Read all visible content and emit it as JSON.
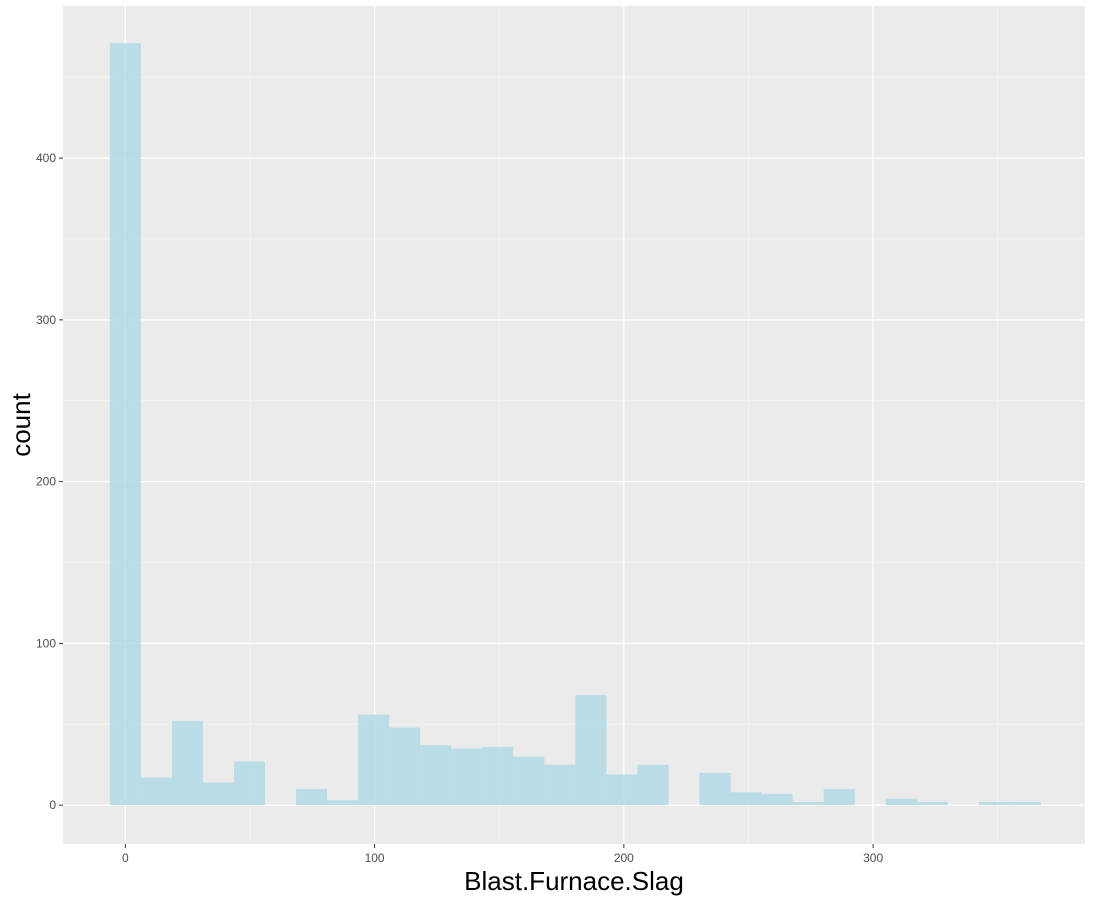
{
  "chart_data": {
    "type": "bar",
    "subtype": "histogram",
    "title": "",
    "xlabel": "Blast.Furnace.Slag",
    "ylabel": "count",
    "bin_width": 12.45,
    "x_start": -6.2,
    "counts": [
      471,
      17,
      52,
      14,
      27,
      0,
      10,
      3,
      56,
      48,
      37,
      35,
      36,
      30,
      25,
      68,
      19,
      25,
      0,
      20,
      8,
      7,
      2,
      10,
      0,
      4,
      2,
      0,
      2,
      2
    ],
    "xlim": [
      -25,
      385
    ],
    "ylim": [
      -24,
      494
    ],
    "x_ticks": [
      0,
      100,
      200,
      300
    ],
    "x_tick_labels": [
      "0",
      "100",
      "200",
      "300"
    ],
    "y_ticks": [
      0,
      100,
      200,
      300,
      400
    ],
    "y_tick_labels": [
      "0",
      "100",
      "200",
      "300",
      "400"
    ],
    "grid": true,
    "colors": {
      "panel_background": "#EBEBEB",
      "grid_major": "#FFFFFF",
      "grid_minor": "#F5F5F5",
      "bar_fill": "#ADD8E6",
      "tick_text": "#4D4D4D",
      "tick_mark": "#333333"
    },
    "bar_opacity": 0.8
  }
}
